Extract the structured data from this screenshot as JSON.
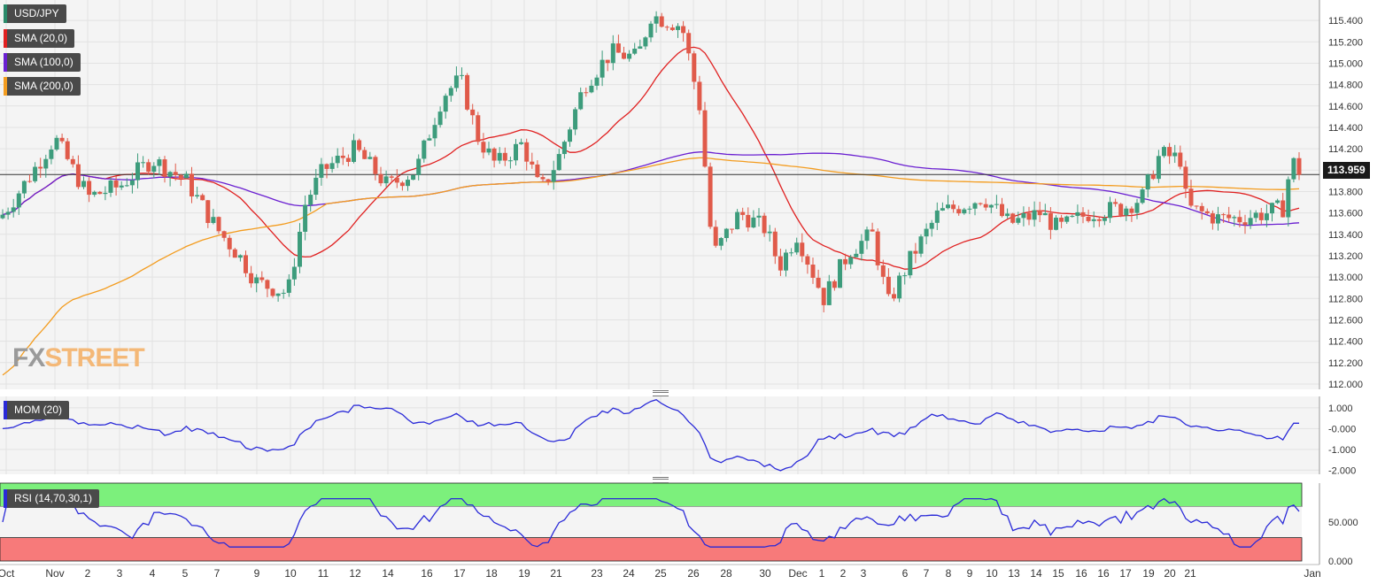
{
  "chart_data": {
    "type": "candlestick",
    "symbol": "USD/JPY",
    "last_price": "113.959",
    "price_axis": {
      "ticks": [
        "115.400",
        "115.200",
        "115.000",
        "114.800",
        "114.600",
        "114.400",
        "114.200",
        "114.000",
        "113.800",
        "113.600",
        "113.400",
        "113.200",
        "113.000",
        "112.800",
        "112.600",
        "112.400",
        "112.200",
        "112.000"
      ],
      "range": [
        111.95,
        115.55
      ]
    },
    "x_labels": [
      "Oct",
      "Nov",
      "2",
      "3",
      "4",
      "5",
      "7",
      "9",
      "10",
      "11",
      "12",
      "14",
      "16",
      "17",
      "18",
      "19",
      "21",
      "23",
      "24",
      "25",
      "26",
      "28",
      "30",
      "Dec",
      "1",
      "2",
      "3",
      "6",
      "7",
      "8",
      "9",
      "10",
      "13",
      "14",
      "15",
      "16",
      "16",
      "17",
      "19",
      "20",
      "21",
      "Jan"
    ],
    "indicators": {
      "sma20": {
        "label": "SMA (20,0)",
        "color": "#e02020"
      },
      "sma100": {
        "label": "SMA (100,0)",
        "color": "#6a1fd1"
      },
      "sma200": {
        "label": "SMA (200,0)",
        "color": "#f39c1f"
      },
      "momentum": {
        "label": "MOM (20)",
        "color": "#2a2ad8",
        "ticks": [
          "1.000",
          "-0.000",
          "-1.000",
          "-2.000"
        ],
        "range": [
          -2.2,
          1.55
        ]
      },
      "rsi": {
        "label": "RSI (14,70,30,1)",
        "color": "#2a2ad8",
        "ticks": [
          "50.000",
          "0.000"
        ],
        "upper_band": 70,
        "lower_band": 30,
        "range": [
          0,
          100
        ]
      }
    },
    "grid": true,
    "colors": {
      "bull": "#3d9c7c",
      "bear": "#e05a4a"
    },
    "legend_position": "top-left",
    "logo": {
      "fx": "FX",
      "street": "STREET"
    }
  }
}
